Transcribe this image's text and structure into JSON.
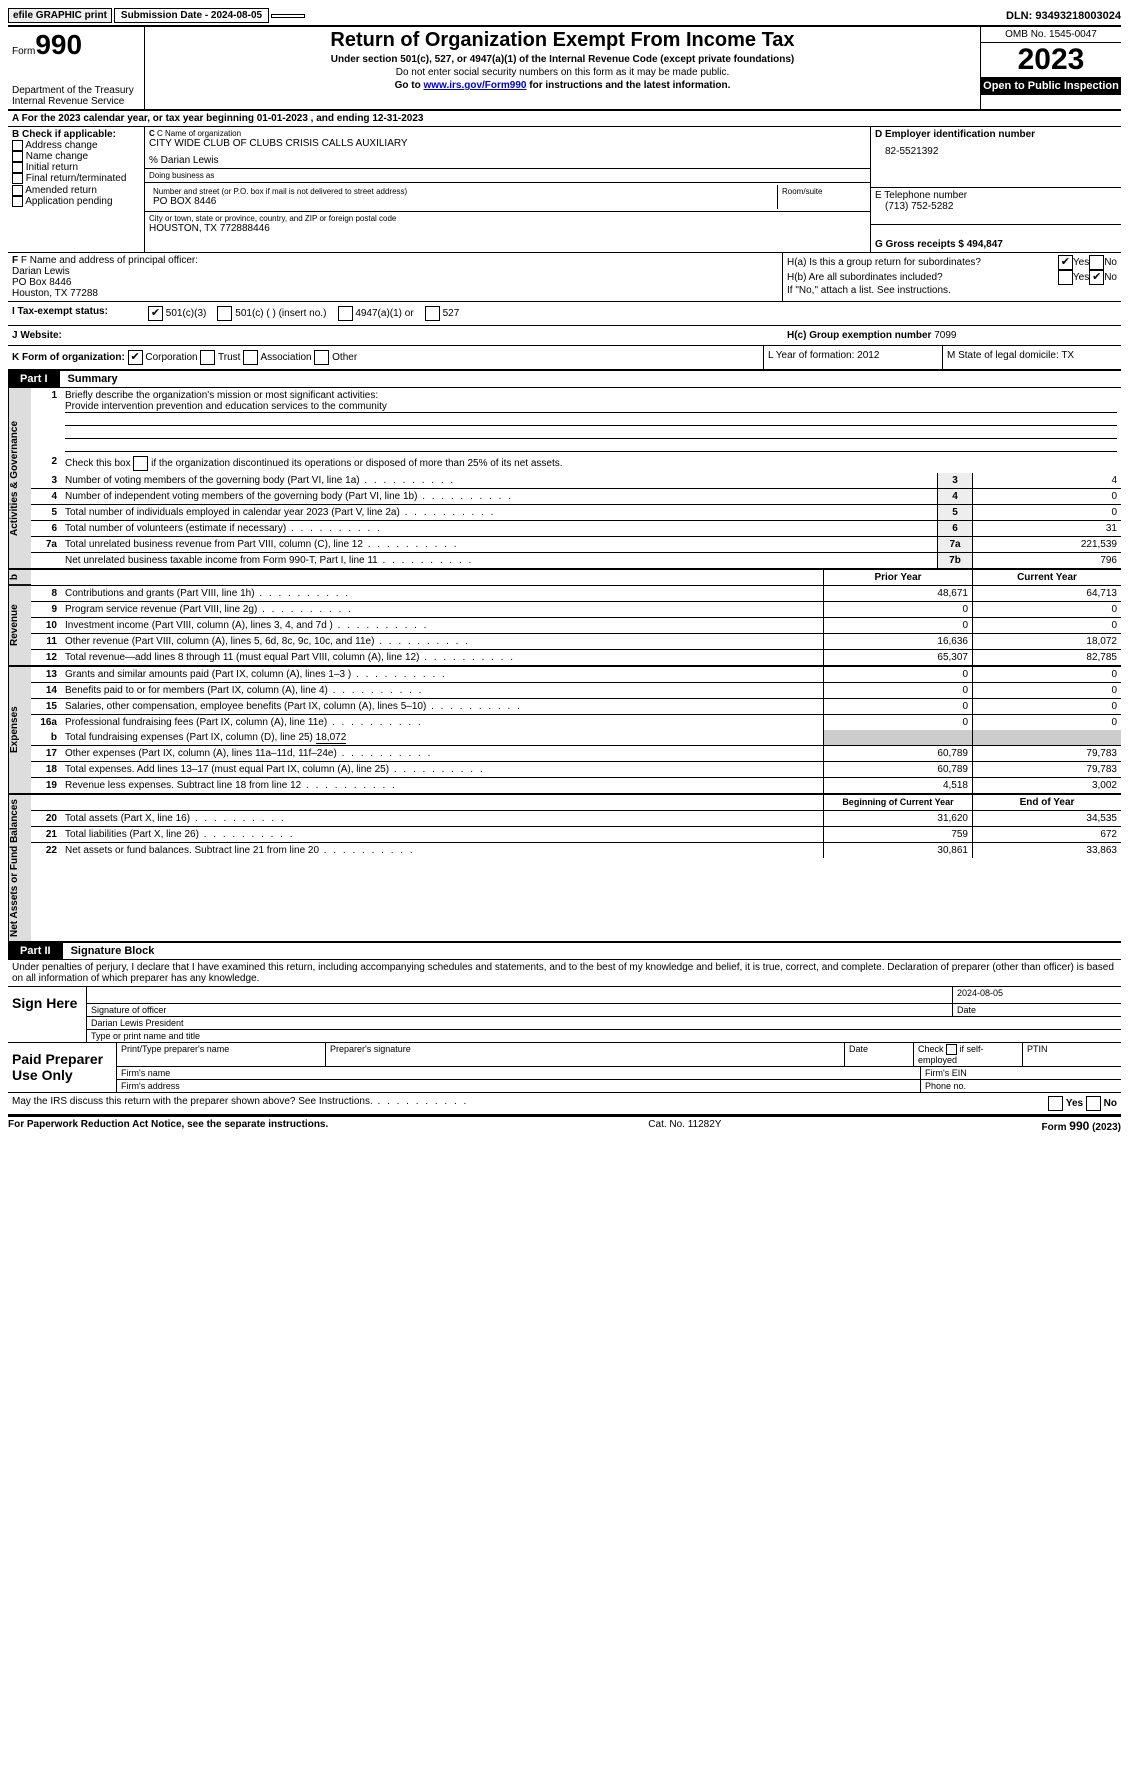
{
  "topbar": {
    "efile": "efile GRAPHIC print",
    "submission_label": "Submission Date - 2024-08-05",
    "dln": "DLN: 93493218003024"
  },
  "header": {
    "form_word": "Form",
    "form_num": "990",
    "dept": "Department of the Treasury",
    "irs": "Internal Revenue Service",
    "title": "Return of Organization Exempt From Income Tax",
    "sub": "Under section 501(c), 527, or 4947(a)(1) of the Internal Revenue Code (except private foundations)",
    "note1": "Do not enter social security numbers on this form as it may be made public.",
    "note2_pre": "Go to ",
    "note2_link": "www.irs.gov/Form990",
    "note2_post": " for instructions and the latest information.",
    "omb": "OMB No. 1545-0047",
    "year": "2023",
    "inspect": "Open to Public Inspection"
  },
  "row_a": "A For the 2023 calendar year, or tax year beginning 01-01-2023   , and ending 12-31-2023",
  "section_b": {
    "header": "B Check if applicable:",
    "items": [
      "Address change",
      "Name change",
      "Initial return",
      "Final return/terminated",
      "Amended return",
      "Application pending"
    ]
  },
  "section_c": {
    "label": "C Name of organization",
    "name": "CITY WIDE CLUB OF CLUBS CRISIS CALLS AUXILIARY",
    "care_of": "% Darian Lewis",
    "dba_label": "Doing business as",
    "addr_label": "Number and street (or P.O. box if mail is not delivered to street address)",
    "addr": "PO BOX 8446",
    "room_label": "Room/suite",
    "city_label": "City or town, state or province, country, and ZIP or foreign postal code",
    "city": "HOUSTON, TX  772888446"
  },
  "section_d": {
    "label": "D Employer identification number",
    "value": "82-5521392"
  },
  "section_e": {
    "label": "E Telephone number",
    "value": "(713) 752-5282"
  },
  "section_g": {
    "label": "G Gross receipts $ 494,847"
  },
  "section_f": {
    "label": "F  Name and address of principal officer:",
    "line1": "Darian Lewis",
    "line2": "PO Box 8446",
    "line3": "Houston, TX  77288"
  },
  "section_h": {
    "ha": "H(a)  Is this a group return for subordinates?",
    "hb": "H(b)  Are all subordinates included?",
    "hb_note": "If \"No,\" attach a list. See instructions.",
    "hc": "H(c)  Group exemption number   ",
    "hc_val": "7099",
    "yes": "Yes",
    "no": "No"
  },
  "row_i": {
    "label": "I   Tax-exempt status:",
    "opts": [
      "501(c)(3)",
      "501(c) (  ) (insert no.)",
      "4947(a)(1) or",
      "527"
    ]
  },
  "row_j": {
    "label": "J   Website:"
  },
  "row_k": {
    "label": "K Form of organization:",
    "opts": [
      "Corporation",
      "Trust",
      "Association",
      "Other"
    ],
    "l": "L Year of formation: 2012",
    "m": "M State of legal domicile: TX"
  },
  "part1": {
    "tab": "Part I",
    "title": "Summary"
  },
  "summary": {
    "q1": "Briefly describe the organization's mission or most significant activities:",
    "q1_ans": "Provide intervention prevention and education services to the community",
    "q2": "Check this box        if the organization discontinued its operations or disposed of more than 25% of its net assets.",
    "rows_single": [
      {
        "n": "3",
        "d": "Number of voting members of the governing body (Part VI, line 1a)",
        "box": "3",
        "v": "4"
      },
      {
        "n": "4",
        "d": "Number of independent voting members of the governing body (Part VI, line 1b)",
        "box": "4",
        "v": "0"
      },
      {
        "n": "5",
        "d": "Total number of individuals employed in calendar year 2023 (Part V, line 2a)",
        "box": "5",
        "v": "0"
      },
      {
        "n": "6",
        "d": "Total number of volunteers (estimate if necessary)",
        "box": "6",
        "v": "31"
      },
      {
        "n": "7a",
        "d": "Total unrelated business revenue from Part VIII, column (C), line 12",
        "box": "7a",
        "v": "221,539"
      },
      {
        "n": "",
        "d": "Net unrelated business taxable income from Form 990-T, Part I, line 11",
        "box": "7b",
        "v": "796"
      }
    ],
    "hdr_prior": "Prior Year",
    "hdr_curr": "Current Year",
    "revenue": [
      {
        "n": "8",
        "d": "Contributions and grants (Part VIII, line 1h)",
        "p": "48,671",
        "c": "64,713"
      },
      {
        "n": "9",
        "d": "Program service revenue (Part VIII, line 2g)",
        "p": "0",
        "c": "0"
      },
      {
        "n": "10",
        "d": "Investment income (Part VIII, column (A), lines 3, 4, and 7d )",
        "p": "0",
        "c": "0"
      },
      {
        "n": "11",
        "d": "Other revenue (Part VIII, column (A), lines 5, 6d, 8c, 9c, 10c, and 11e)",
        "p": "16,636",
        "c": "18,072"
      },
      {
        "n": "12",
        "d": "Total revenue—add lines 8 through 11 (must equal Part VIII, column (A), line 12)",
        "p": "65,307",
        "c": "82,785"
      }
    ],
    "expenses": [
      {
        "n": "13",
        "d": "Grants and similar amounts paid (Part IX, column (A), lines 1–3 )",
        "p": "0",
        "c": "0"
      },
      {
        "n": "14",
        "d": "Benefits paid to or for members (Part IX, column (A), line 4)",
        "p": "0",
        "c": "0"
      },
      {
        "n": "15",
        "d": "Salaries, other compensation, employee benefits (Part IX, column (A), lines 5–10)",
        "p": "0",
        "c": "0"
      },
      {
        "n": "16a",
        "d": "Professional fundraising fees (Part IX, column (A), line 11e)",
        "p": "0",
        "c": "0"
      }
    ],
    "exp_b": "Total fundraising expenses (Part IX, column (D), line 25) ",
    "exp_b_val": "18,072",
    "expenses2": [
      {
        "n": "17",
        "d": "Other expenses (Part IX, column (A), lines 11a–11d, 11f–24e)",
        "p": "60,789",
        "c": "79,783"
      },
      {
        "n": "18",
        "d": "Total expenses. Add lines 13–17 (must equal Part IX, column (A), line 25)",
        "p": "60,789",
        "c": "79,783"
      },
      {
        "n": "19",
        "d": "Revenue less expenses. Subtract line 18 from line 12",
        "p": "4,518",
        "c": "3,002"
      }
    ],
    "hdr_begin": "Beginning of Current Year",
    "hdr_end": "End of Year",
    "netassets": [
      {
        "n": "20",
        "d": "Total assets (Part X, line 16)",
        "p": "31,620",
        "c": "34,535"
      },
      {
        "n": "21",
        "d": "Total liabilities (Part X, line 26)",
        "p": "759",
        "c": "672"
      },
      {
        "n": "22",
        "d": "Net assets or fund balances. Subtract line 21 from line 20",
        "p": "30,861",
        "c": "33,863"
      }
    ],
    "vtabs": {
      "gov": "Activities & Governance",
      "rev": "Revenue",
      "exp": "Expenses",
      "net": "Net Assets or Fund Balances"
    }
  },
  "part2": {
    "tab": "Part II",
    "title": "Signature Block"
  },
  "penalties": "Under penalties of perjury, I declare that I have examined this return, including accompanying schedules and statements, and to the best of my knowledge and belief, it is true, correct, and complete. Declaration of preparer (other than officer) is based on all information of which preparer has any knowledge.",
  "sign": {
    "here": "Sign Here",
    "date": "2024-08-05",
    "sig_of": "Signature of officer",
    "date_lbl": "Date",
    "name": "Darian Lewis  President",
    "type_lbl": "Type or print name and title"
  },
  "paid": {
    "lbl": "Paid Preparer Use Only",
    "c1": "Print/Type preparer's name",
    "c2": "Preparer's signature",
    "c3": "Date",
    "c4": "Check         if self-employed",
    "c5": "PTIN",
    "firm_name": "Firm's name",
    "firm_ein": "Firm's EIN",
    "firm_addr": "Firm's address",
    "phone": "Phone no."
  },
  "discuss": "May the IRS discuss this return with the preparer shown above? See Instructions.",
  "footer": {
    "left": "For Paperwork Reduction Act Notice, see the separate instructions.",
    "mid": "Cat. No. 11282Y",
    "right_a": "Form ",
    "right_b": "990",
    "right_c": " (2023)"
  }
}
